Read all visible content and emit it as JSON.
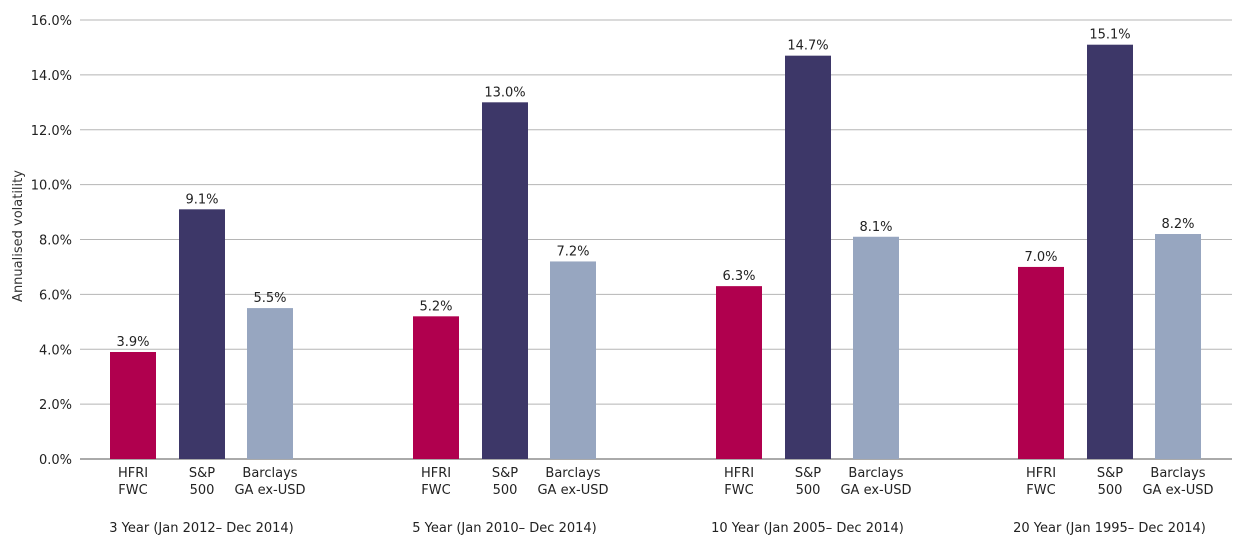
{
  "chart_data": {
    "type": "bar",
    "ylabel": "Annualised volatility",
    "ylim": [
      0,
      16
    ],
    "yticks": [
      "0.0%",
      "2.0%",
      "4.0%",
      "6.0%",
      "8.0%",
      "10.0%",
      "12.0%",
      "14.0%",
      "16.0%"
    ],
    "grid": true,
    "groups": [
      {
        "label": "3 Year (Jan 2012– Dec 2014)",
        "bars": [
          {
            "category": [
              "HFRI",
              "FWC"
            ],
            "value": 3.9,
            "label": "3.9%",
            "color": "#b0004e"
          },
          {
            "category": [
              "S&P",
              "500"
            ],
            "value": 9.1,
            "label": "9.1%",
            "color": "#3d3768"
          },
          {
            "category": [
              "Barclays",
              "GA ex-USD"
            ],
            "value": 5.5,
            "label": "5.5%",
            "color": "#97a6c0"
          }
        ]
      },
      {
        "label": "5 Year (Jan 2010– Dec 2014)",
        "bars": [
          {
            "category": [
              "HFRI",
              "FWC"
            ],
            "value": 5.2,
            "label": "5.2%",
            "color": "#b0004e"
          },
          {
            "category": [
              "S&P",
              "500"
            ],
            "value": 13.0,
            "label": "13.0%",
            "color": "#3d3768"
          },
          {
            "category": [
              "Barclays",
              "GA ex-USD"
            ],
            "value": 7.2,
            "label": "7.2%",
            "color": "#97a6c0"
          }
        ]
      },
      {
        "label": "10 Year (Jan 2005– Dec 2014)",
        "bars": [
          {
            "category": [
              "HFRI",
              "FWC"
            ],
            "value": 6.3,
            "label": "6.3%",
            "color": "#b0004e"
          },
          {
            "category": [
              "S&P",
              "500"
            ],
            "value": 14.7,
            "label": "14.7%",
            "color": "#3d3768"
          },
          {
            "category": [
              "Barclays",
              "GA ex-USD"
            ],
            "value": 8.1,
            "label": "8.1%",
            "color": "#97a6c0"
          }
        ]
      },
      {
        "label": "20 Year (Jan 1995– Dec 2014)",
        "bars": [
          {
            "category": [
              "HFRI",
              "FWC"
            ],
            "value": 7.0,
            "label": "7.0%",
            "color": "#b0004e"
          },
          {
            "category": [
              "S&P",
              "500"
            ],
            "value": 15.1,
            "label": "15.1%",
            "color": "#3d3768"
          },
          {
            "category": [
              "Barclays",
              "GA ex-USD"
            ],
            "value": 8.2,
            "label": "8.2%",
            "color": "#97a6c0"
          }
        ]
      }
    ]
  }
}
